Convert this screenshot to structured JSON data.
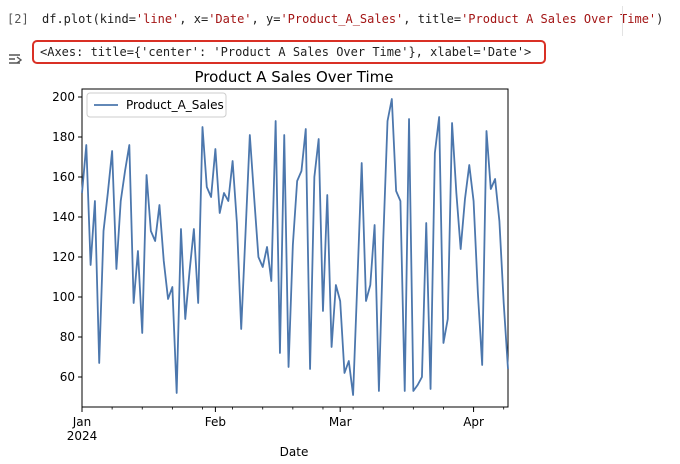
{
  "cell": {
    "exec_count": "[2]",
    "code": {
      "prefix": "df.plot(kind=",
      "kind_str": "'line'",
      "sep1": ", x=",
      "x_str": "'Date'",
      "sep2": ", y=",
      "y_str": "'Product_A_Sales'",
      "sep3": ", title=",
      "title_str": "'Product A Sales Over Time'",
      "suffix": ")"
    }
  },
  "output": {
    "icon": "output-toggle-icon",
    "repr": "<Axes: title={'center': 'Product A Sales Over Time'}, xlabel='Date'>"
  },
  "colors": {
    "line": "#4c77ad",
    "highlight_border": "#d93025",
    "string": "#a31515"
  },
  "chart_data": {
    "type": "line",
    "title": "Product A Sales Over Time",
    "xlabel": "Date",
    "ylabel": "",
    "ylim": [
      45,
      204
    ],
    "xlim": [
      "2024-01-01",
      "2024-04-09"
    ],
    "yticks": [
      60,
      80,
      100,
      120,
      140,
      160,
      180,
      200
    ],
    "xticks": [
      {
        "date": "2024-01-01",
        "label": "Jan",
        "sublabel": "2024"
      },
      {
        "date": "2024-02-01",
        "label": "Feb",
        "sublabel": ""
      },
      {
        "date": "2024-03-01",
        "label": "Mar",
        "sublabel": ""
      },
      {
        "date": "2024-04-01",
        "label": "Apr",
        "sublabel": ""
      }
    ],
    "legend": {
      "position": "top-left",
      "entries": [
        "Product_A_Sales"
      ]
    },
    "grid": false,
    "start_date": "2024-01-01",
    "frequency": "daily",
    "series": [
      {
        "name": "Product_A_Sales",
        "values": [
          152,
          176,
          116,
          148,
          67,
          133,
          152,
          173,
          114,
          148,
          163,
          176,
          97,
          123,
          82,
          161,
          133,
          128,
          146,
          118,
          99,
          105,
          52,
          134,
          89,
          113,
          134,
          97,
          185,
          155,
          150,
          174,
          142,
          152,
          148,
          168,
          137,
          84,
          132,
          181,
          150,
          120,
          115,
          125,
          108,
          188,
          72,
          181,
          65,
          126,
          158,
          163,
          184,
          64,
          160,
          179,
          93,
          151,
          75,
          106,
          98,
          62,
          68,
          51,
          108,
          167,
          98,
          106,
          136,
          53,
          128,
          188,
          199,
          153,
          148,
          53,
          189,
          53,
          56,
          60,
          137,
          54,
          172,
          190,
          77,
          89,
          187,
          152,
          124,
          149,
          166,
          148,
          102,
          66,
          183,
          154,
          159,
          138,
          97,
          64
        ]
      }
    ]
  }
}
